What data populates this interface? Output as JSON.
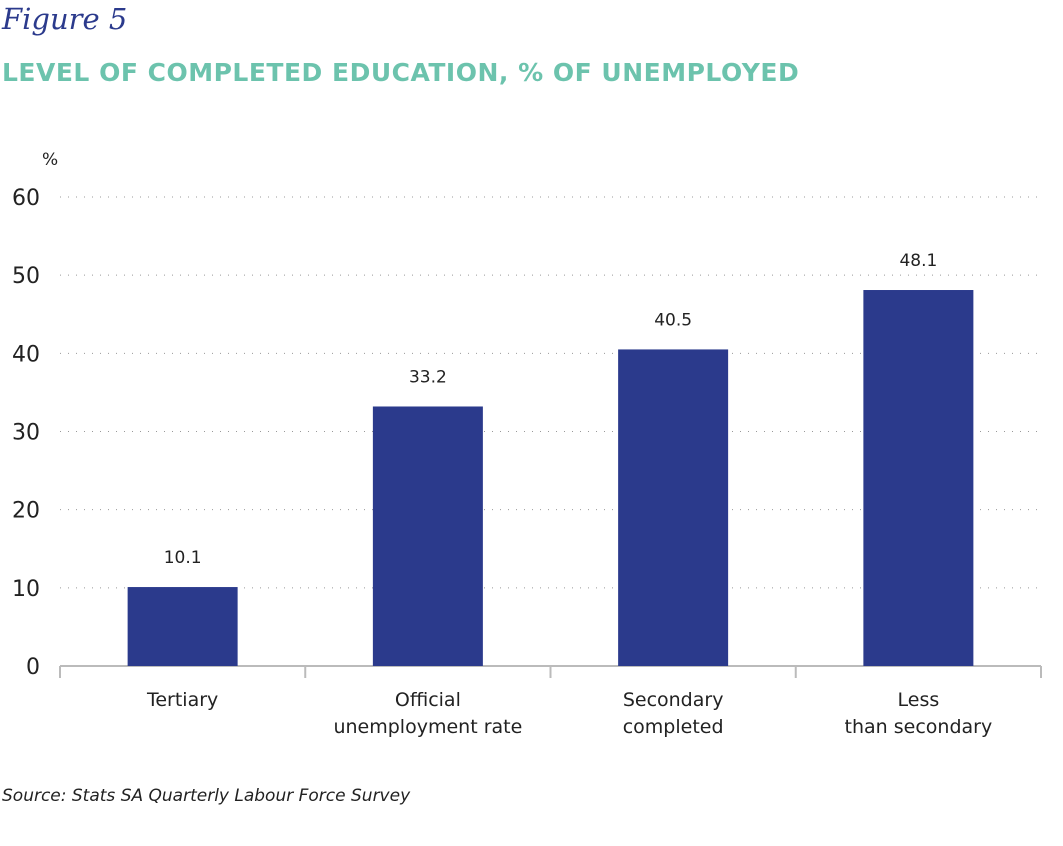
{
  "figure_label": "Figure 5",
  "source": "Source: Stats SA Quarterly Labour Force Survey",
  "chart_data": {
    "type": "bar",
    "title": "LEVEL OF COMPLETED EDUCATION, % OF UNEMPLOYED",
    "ylabel": "%",
    "xlabel": "",
    "categories": [
      [
        "Tertiary"
      ],
      [
        "Official",
        "unemployment rate"
      ],
      [
        "Secondary",
        "completed"
      ],
      [
        "Less",
        "than secondary"
      ]
    ],
    "values": [
      10.1,
      33.2,
      40.5,
      48.1
    ],
    "data_labels": [
      "10.1",
      "33.2",
      "40.5",
      "48.1"
    ],
    "ylim": [
      0,
      60
    ],
    "yticks": [
      0,
      10,
      20,
      30,
      40,
      50,
      60
    ],
    "grid": true,
    "bar_color": "#2b3a8c",
    "title_color": "#6cc3ad"
  }
}
